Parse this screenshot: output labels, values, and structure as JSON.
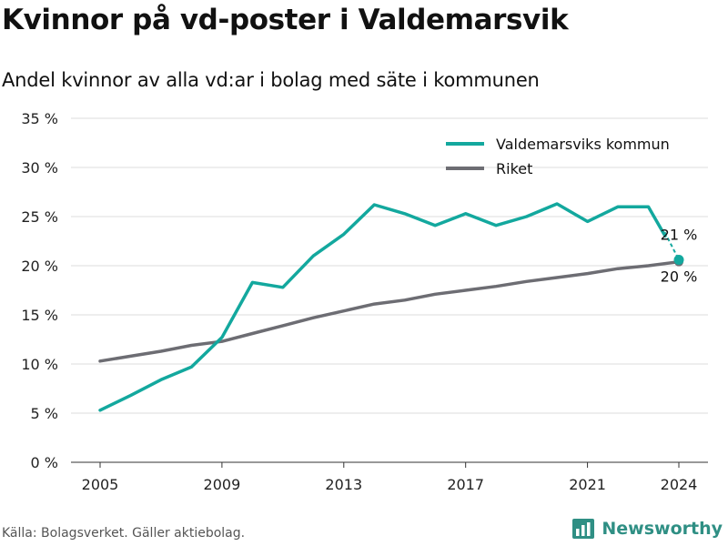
{
  "title": "Kvinnor på vd-poster i Valdemarsvik",
  "subtitle": "Andel kvinnor av alla vd:ar i bolag med säte i kommunen",
  "source": "Källa: Bolagsverket. Gäller aktiebolag.",
  "brand": {
    "name": "Newsworthy",
    "icon": "bar-chart-logo-icon"
  },
  "colors": {
    "kommun": "#13a89e",
    "riket": "#6d6d73",
    "grid": "#dddddd"
  },
  "chart_data": {
    "type": "line",
    "x": [
      2005,
      2006,
      2007,
      2008,
      2009,
      2010,
      2011,
      2012,
      2013,
      2014,
      2015,
      2016,
      2017,
      2018,
      2019,
      2020,
      2021,
      2022,
      2023,
      2024
    ],
    "series": [
      {
        "name": "Valdemarsviks kommun",
        "color": "#13a89e",
        "values": [
          5.3,
          6.8,
          8.4,
          9.7,
          12.7,
          18.3,
          17.8,
          21.0,
          23.2,
          26.2,
          25.3,
          24.1,
          25.3,
          24.1,
          25.0,
          26.3,
          24.5,
          26.0,
          26.0,
          20.6
        ]
      },
      {
        "name": "Riket",
        "color": "#6d6d73",
        "values": [
          10.3,
          10.8,
          11.3,
          11.9,
          12.3,
          13.1,
          13.9,
          14.7,
          15.4,
          16.1,
          16.5,
          17.1,
          17.5,
          17.9,
          18.4,
          18.8,
          19.2,
          19.7,
          20.0,
          20.4
        ]
      }
    ],
    "xticks": [
      2005,
      2009,
      2013,
      2017,
      2021,
      2024
    ],
    "ylim": [
      0,
      35
    ],
    "yticks": [
      0,
      5,
      10,
      15,
      20,
      25,
      30,
      35
    ],
    "ytick_labels": [
      "0 %",
      "5 %",
      "10 %",
      "15 %",
      "20 %",
      "25 %",
      "30 %",
      "35 %"
    ],
    "end_labels": {
      "kommun": "21 %",
      "riket": "20 %"
    },
    "legend_position": "top-right",
    "grid": true
  }
}
